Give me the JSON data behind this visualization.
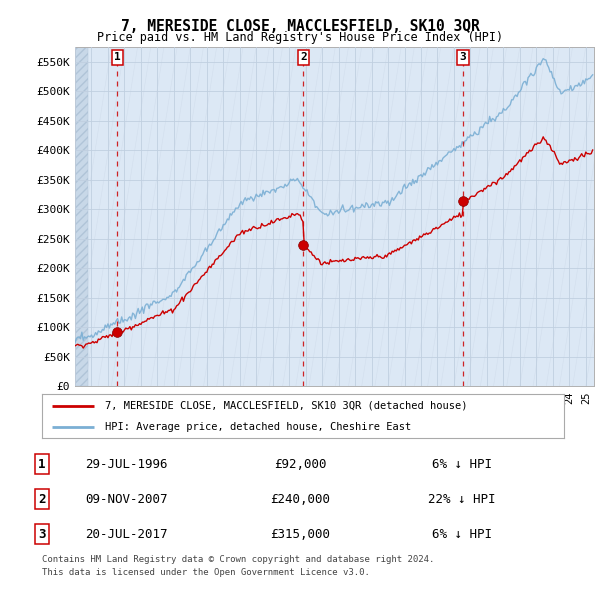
{
  "title": "7, MERESIDE CLOSE, MACCLESFIELD, SK10 3QR",
  "subtitle": "Price paid vs. HM Land Registry's House Price Index (HPI)",
  "property_label": "7, MERESIDE CLOSE, MACCLESFIELD, SK10 3QR (detached house)",
  "hpi_label": "HPI: Average price, detached house, Cheshire East",
  "transactions": [
    {
      "num": 1,
      "date": "29-JUL-1996",
      "price": 92000,
      "pct": "6%",
      "dir": "↓"
    },
    {
      "num": 2,
      "date": "09-NOV-2007",
      "price": 240000,
      "pct": "22%",
      "dir": "↓"
    },
    {
      "num": 3,
      "date": "20-JUL-2017",
      "price": 315000,
      "pct": "6%",
      "dir": "↓"
    }
  ],
  "transaction_years": [
    1996.57,
    2007.86,
    2017.55
  ],
  "transaction_prices": [
    92000,
    240000,
    315000
  ],
  "footnote1": "Contains HM Land Registry data © Crown copyright and database right 2024.",
  "footnote2": "This data is licensed under the Open Government Licence v3.0.",
  "ylim": [
    0,
    575000
  ],
  "yticks": [
    0,
    50000,
    100000,
    150000,
    200000,
    250000,
    300000,
    350000,
    400000,
    450000,
    500000,
    550000
  ],
  "ytick_labels": [
    "£0",
    "£50K",
    "£100K",
    "£150K",
    "£200K",
    "£250K",
    "£300K",
    "£350K",
    "£400K",
    "£450K",
    "£500K",
    "£550K"
  ],
  "hpi_color": "#7bafd4",
  "property_color": "#cc0000",
  "dot_color": "#cc0000",
  "vline_color": "#cc0000",
  "grid_color": "#c0cfe0",
  "plot_bg_color": "#dce8f5",
  "hatch_area_color": "#c8d8e8",
  "legend_border_color": "#aaaaaa",
  "xlim_start": 1994,
  "xlim_end": 2025.5
}
